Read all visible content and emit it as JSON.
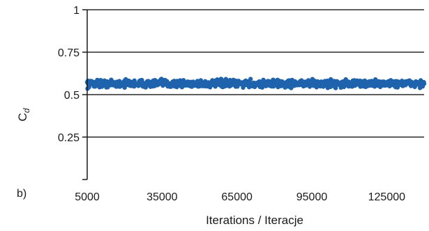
{
  "chart_data": {
    "type": "scatter",
    "panel_label": "b)",
    "xlabel": "Iterations / Iteracje",
    "ylabel_main": "C",
    "ylabel_sub": "d",
    "xlim": [
      5000,
      140000
    ],
    "ylim": [
      0,
      1
    ],
    "x_ticks": [
      {
        "value": 5000,
        "label": "5000"
      },
      {
        "value": 35000,
        "label": "35000"
      },
      {
        "value": 65000,
        "label": "65000"
      },
      {
        "value": 95000,
        "label": "95000"
      },
      {
        "value": 125000,
        "label": "125000"
      }
    ],
    "y_ticks": [
      {
        "value": 0,
        "label": ""
      },
      {
        "value": 0.25,
        "label": "0.25"
      },
      {
        "value": 0.5,
        "label": "0.5"
      },
      {
        "value": 0.75,
        "label": "0.75"
      },
      {
        "value": 1,
        "label": "1"
      }
    ],
    "grid": "horizontal",
    "series": [
      {
        "color": "#1f63ad",
        "x_start": 5000,
        "x_end": 140000,
        "mean": 0.565,
        "band": [
          0.545,
          0.585
        ]
      }
    ]
  }
}
